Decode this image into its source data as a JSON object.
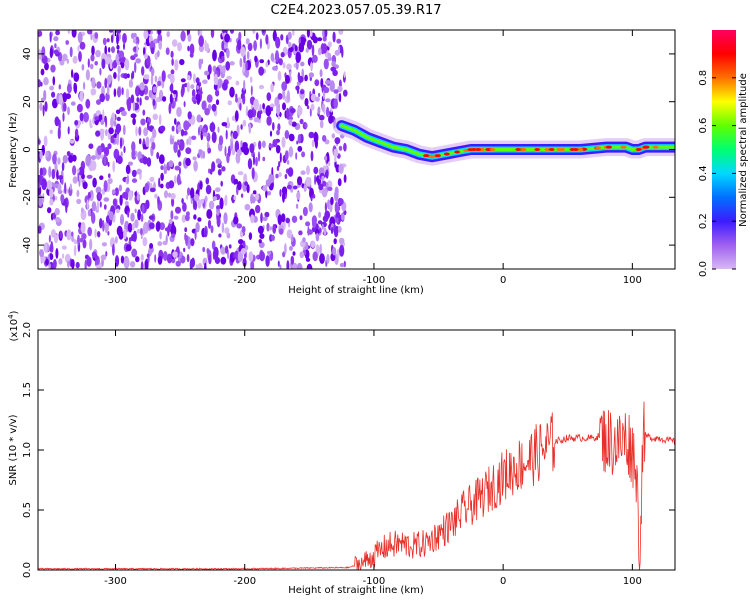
{
  "title": "C2E4.2023.057.05.39.R17",
  "colors": {
    "noise_dark": "#6a00e6",
    "noise_light": "#d8b8f4",
    "snr_line": "#e8302a",
    "colorbar_stops": [
      "#d8b8f4",
      "#a060f0",
      "#3c1cff",
      "#0070ff",
      "#00d8ff",
      "#00ff70",
      "#60ff00",
      "#ffff00",
      "#ff7000",
      "#ff0000",
      "#ff0060"
    ]
  },
  "chart_data": [
    {
      "type": "heatmap",
      "name": "spectrogram",
      "xlabel": "Height of straight line (km)",
      "ylabel": "Frequency (Hz)",
      "xlim": [
        -360,
        133
      ],
      "ylim": [
        -50,
        50
      ],
      "xticks": [
        -300,
        -200,
        -100,
        0,
        100
      ],
      "xtick_labels": [
        "-300",
        "-200",
        "-100",
        "0",
        "100"
      ],
      "yticks": [
        40,
        20,
        0,
        -20,
        -40
      ],
      "ytick_labels": [
        "40",
        "20",
        "0",
        "-20",
        "-40"
      ],
      "noise_region_x": [
        -360,
        -122
      ],
      "signal_ridge": {
        "x": [
          -125,
          -115,
          -105,
          -95,
          -85,
          -75,
          -65,
          -55,
          -45,
          -35,
          -25,
          -15,
          0,
          20,
          40,
          60,
          80,
          95,
          100,
          105,
          110,
          120,
          133
        ],
        "freq": [
          10,
          8,
          5,
          3,
          1,
          0,
          -2,
          -3,
          -2,
          -1,
          0,
          0,
          0,
          0,
          0,
          0,
          1,
          1,
          0,
          0,
          1,
          1,
          1
        ]
      },
      "colorbar": {
        "label": "Normalized spectral amplitude",
        "range": [
          0,
          1
        ],
        "ticks": [
          "0.0",
          "0.2",
          "0.4",
          "0.6",
          "0.8"
        ]
      }
    },
    {
      "type": "line",
      "name": "snr",
      "xlabel": "Height of straight line (km)",
      "ylabel": "SNR (10 * v/v)",
      "y_multiplier": "(x10",
      "y_multiplier_exp": "4",
      "y_multiplier_close": ")",
      "xlim": [
        -360,
        133
      ],
      "ylim": [
        0,
        2
      ],
      "xticks": [
        -300,
        -200,
        -100,
        0,
        100
      ],
      "xtick_labels": [
        "-300",
        "-200",
        "-100",
        "0",
        "100"
      ],
      "yticks": [
        0,
        0.5,
        1,
        1.5,
        2
      ],
      "ytick_labels": [
        "0.0",
        "0.5",
        "1.0",
        "1.5",
        "2.0"
      ],
      "series": [
        {
          "x": [
            -360,
            -300,
            -200,
            -120,
            -110,
            -100,
            -90,
            -80,
            -70,
            -60,
            -50,
            -40,
            -30,
            -20,
            -10,
            0,
            10,
            20,
            30,
            40,
            50,
            60,
            70,
            75,
            80,
            90,
            95,
            100,
            103,
            105,
            106,
            108,
            110,
            115,
            120,
            133
          ],
          "y": [
            0.01,
            0.01,
            0.01,
            0.02,
            0.05,
            0.12,
            0.2,
            0.22,
            0.2,
            0.22,
            0.3,
            0.38,
            0.5,
            0.58,
            0.68,
            0.78,
            0.86,
            0.92,
            1.0,
            1.07,
            1.1,
            1.1,
            1.1,
            1.12,
            1.08,
            1.05,
            1.1,
            1.0,
            0.85,
            0.35,
            0.12,
            1.1,
            1.12,
            1.1,
            1.1,
            1.07
          ]
        }
      ]
    }
  ]
}
